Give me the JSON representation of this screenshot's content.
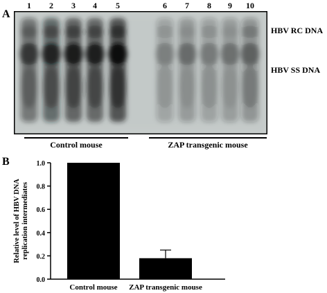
{
  "panel_a": {
    "label": "A",
    "lane_numbers": [
      "1",
      "2",
      "3",
      "4",
      "5",
      "6",
      "7",
      "8",
      "9",
      "10"
    ],
    "band_labels": {
      "rc": "HBV RC DNA",
      "ss": "HBV SS DNA"
    },
    "groups": {
      "control": "Control mouse",
      "zap": "ZAP transgenic mouse"
    },
    "lane_intensity": [
      0.55,
      0.7,
      0.78,
      0.75,
      0.95,
      0.12,
      0.22,
      0.15,
      0.2,
      0.28
    ]
  },
  "panel_b": {
    "label": "B"
  },
  "chart_data": {
    "type": "bar",
    "categories": [
      "Control mouse",
      "ZAP transgenic mouse"
    ],
    "values": [
      1.0,
      0.18
    ],
    "error": [
      0,
      0.07
    ],
    "ylabel_lines": [
      "Relative level of HBV DNA",
      "replication intermediates"
    ],
    "xlabel": "",
    "ylim": [
      0,
      1.0
    ],
    "yticks": [
      "0.0",
      "0.2",
      "0.4",
      "0.6",
      "0.8",
      "1.0"
    ],
    "bar_color": "#000000"
  }
}
